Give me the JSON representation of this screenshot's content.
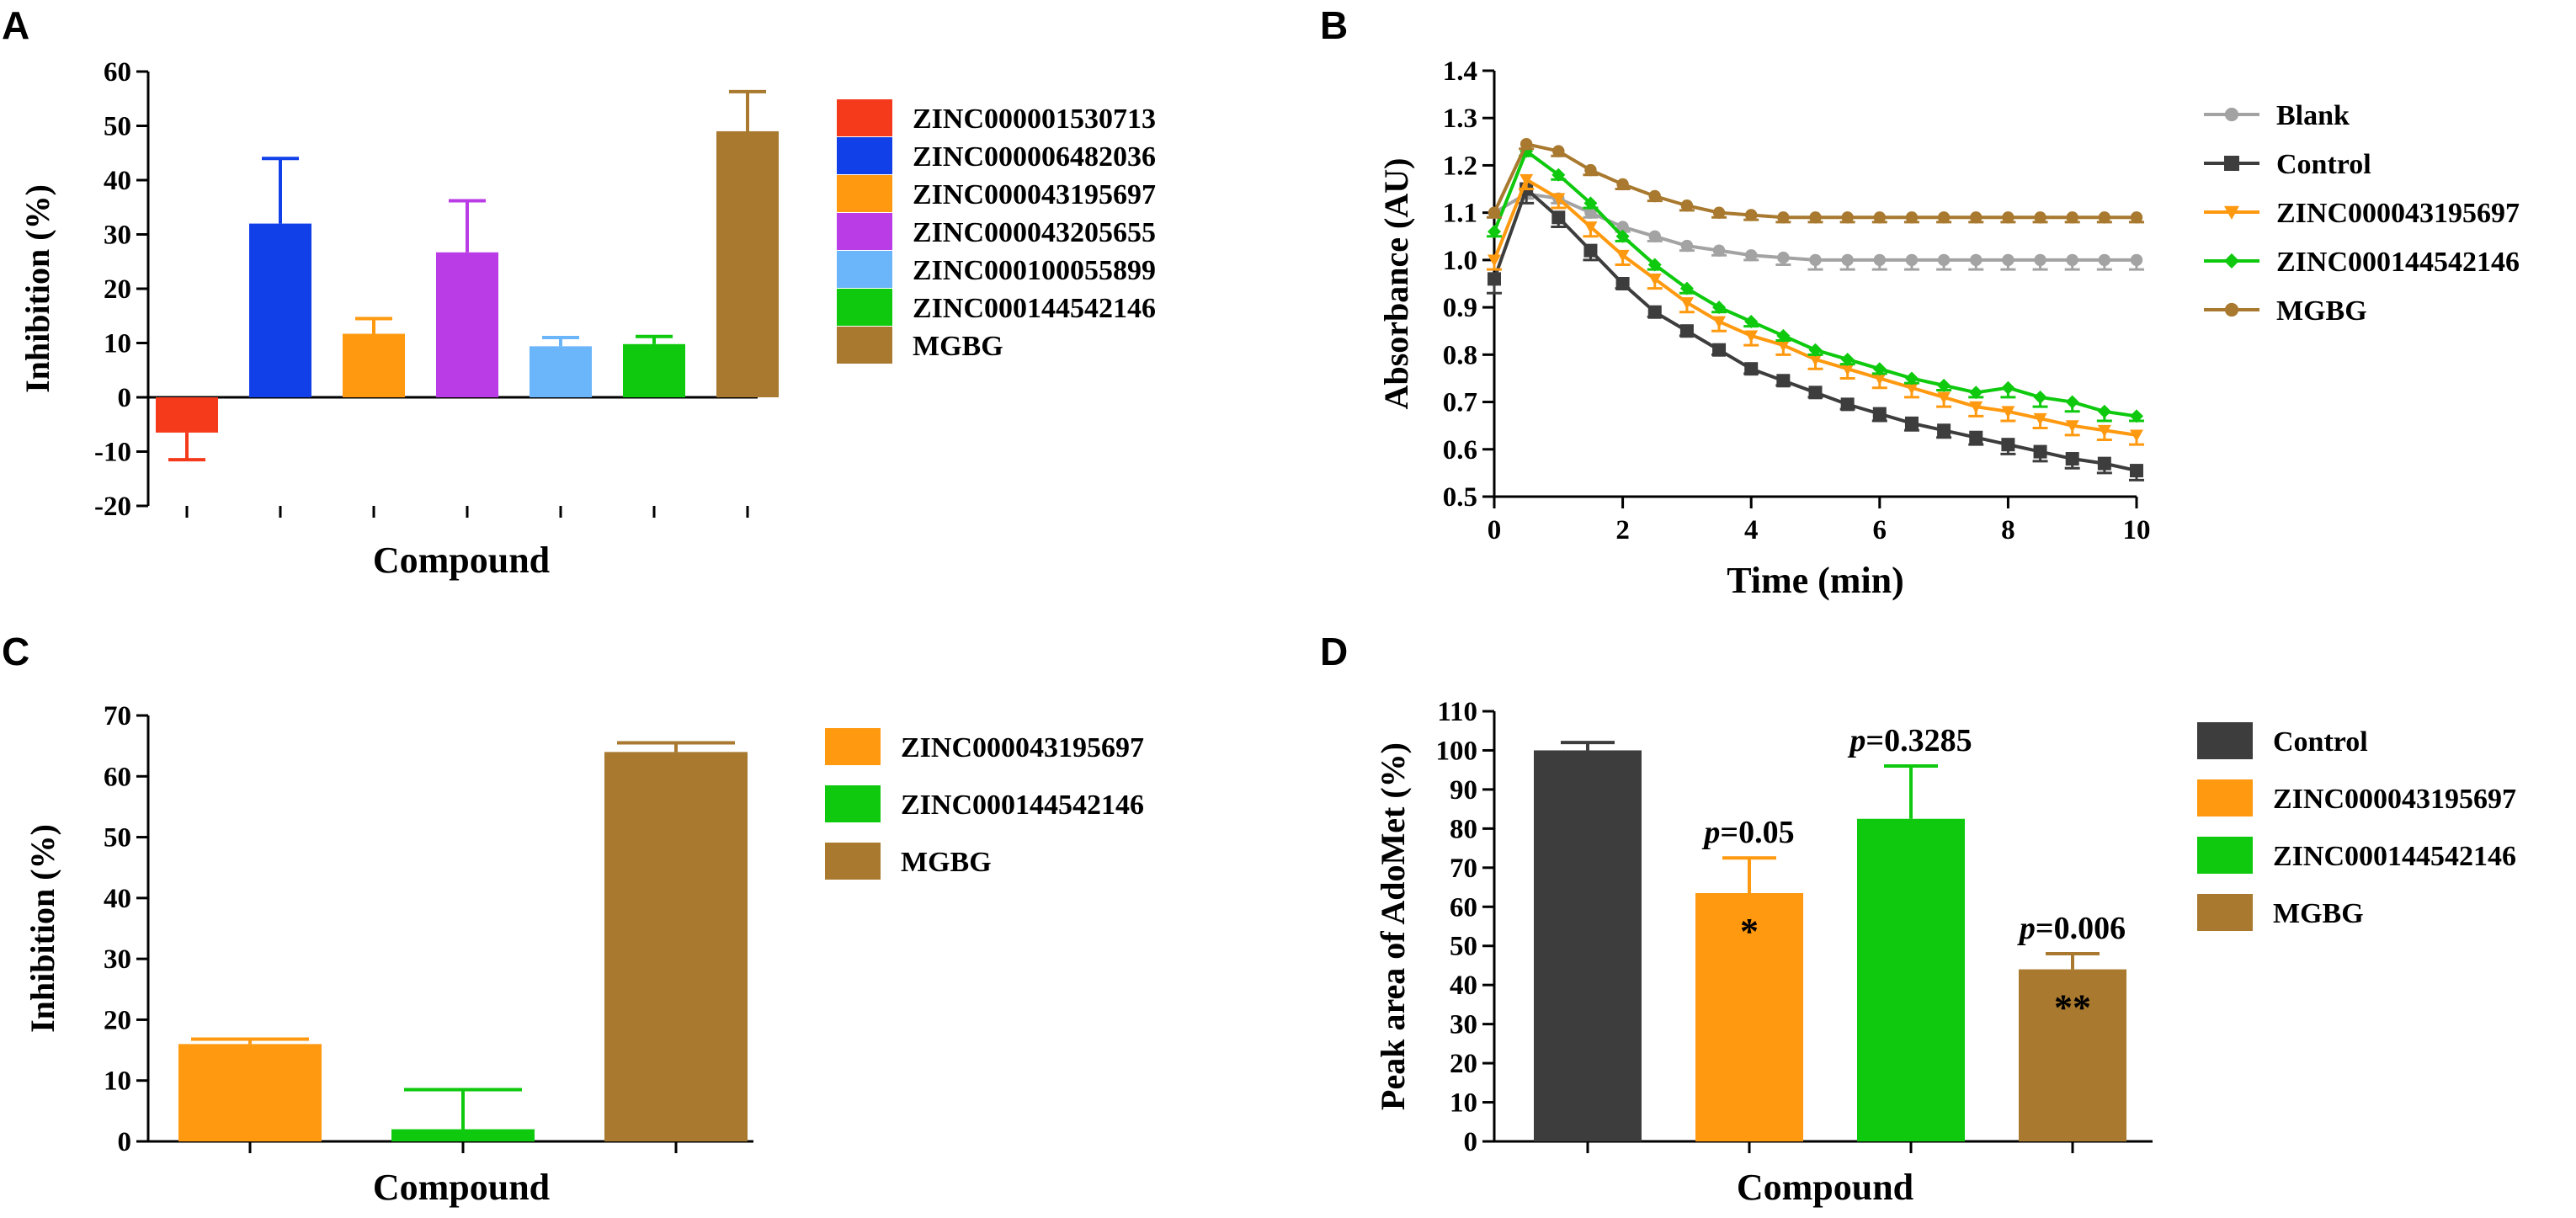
{
  "colors": {
    "ZINC000001530713": "#f53a1c",
    "ZINC000006482036": "#1240e8",
    "ZINC000043195697": "#ff9910",
    "ZINC000043205655": "#b93ce6",
    "ZINC000100055899": "#6bb6fa",
    "ZINC000144542146": "#0ec90e",
    "MGBG": "#a8792e",
    "Blank": "#a3a3a3",
    "Control": "#3d3d3d"
  },
  "chart_data": [
    {
      "panel": "A",
      "type": "bar",
      "title": "",
      "xlabel": "Compound",
      "ylabel": "Inhibition (%)",
      "ylim": [
        -20,
        60
      ],
      "yticks": [
        -20,
        -10,
        0,
        10,
        20,
        30,
        40,
        50,
        60
      ],
      "legend": "right",
      "categories": [
        "ZINC000001530713",
        "ZINC000006482036",
        "ZINC000043195697",
        "ZINC000043205655",
        "ZINC000100055899",
        "ZINC000144542146",
        "MGBG"
      ],
      "values": [
        -6.5,
        32,
        11.7,
        26.7,
        9.4,
        9.8,
        49
      ],
      "errors": [
        5,
        12,
        2.8,
        9.5,
        1.6,
        1.4,
        7.3
      ]
    },
    {
      "panel": "B",
      "type": "line",
      "title": "",
      "xlabel": "Time (min)",
      "ylabel": "Absorbance (AU)",
      "xlim": [
        0,
        10
      ],
      "ylim": [
        0.5,
        1.4
      ],
      "xticks": [
        0,
        2,
        4,
        6,
        8,
        10
      ],
      "yticks": [
        0.5,
        0.6,
        0.7,
        0.8,
        0.9,
        1.0,
        1.1,
        1.2,
        1.3,
        1.4
      ],
      "legend": "right",
      "x": [
        0,
        0.5,
        1,
        1.5,
        2,
        2.5,
        3,
        3.5,
        4,
        4.5,
        5,
        5.5,
        6,
        6.5,
        7,
        7.5,
        8,
        8.5,
        9,
        9.5,
        10
      ],
      "series": [
        {
          "name": "Blank",
          "marker": "circle",
          "values": [
            1.1,
            1.14,
            1.13,
            1.1,
            1.07,
            1.05,
            1.03,
            1.02,
            1.01,
            1.005,
            1.0,
            1.0,
            1.0,
            1.0,
            1.0,
            1.0,
            1.0,
            1.0,
            1.0,
            1.0,
            1.0
          ],
          "errors": [
            0.01,
            0.01,
            0.01,
            0.01,
            0.01,
            0.01,
            0.01,
            0.01,
            0.01,
            0.015,
            0.02,
            0.02,
            0.02,
            0.02,
            0.02,
            0.02,
            0.02,
            0.02,
            0.02,
            0.02,
            0.02
          ]
        },
        {
          "name": "Control",
          "marker": "square",
          "values": [
            0.96,
            1.15,
            1.09,
            1.02,
            0.95,
            0.89,
            0.85,
            0.81,
            0.77,
            0.745,
            0.72,
            0.695,
            0.675,
            0.655,
            0.64,
            0.625,
            0.61,
            0.595,
            0.58,
            0.57,
            0.555
          ],
          "errors": [
            0.03,
            0.03,
            0.02,
            0.02,
            0.01,
            0.01,
            0.01,
            0.01,
            0.01,
            0.01,
            0.01,
            0.01,
            0.015,
            0.015,
            0.015,
            0.015,
            0.02,
            0.02,
            0.02,
            0.02,
            0.02
          ]
        },
        {
          "name": "ZINC000043195697",
          "marker": "triangle-down",
          "values": [
            1.0,
            1.17,
            1.13,
            1.07,
            1.01,
            0.96,
            0.91,
            0.87,
            0.84,
            0.82,
            0.79,
            0.77,
            0.75,
            0.73,
            0.71,
            0.69,
            0.68,
            0.665,
            0.65,
            0.64,
            0.63
          ],
          "errors": [
            0.02,
            0.02,
            0.02,
            0.02,
            0.02,
            0.02,
            0.02,
            0.02,
            0.02,
            0.02,
            0.02,
            0.02,
            0.02,
            0.02,
            0.02,
            0.02,
            0.02,
            0.02,
            0.02,
            0.02,
            0.02
          ]
        },
        {
          "name": "ZINC000144542146",
          "marker": "diamond",
          "values": [
            1.06,
            1.23,
            1.18,
            1.12,
            1.05,
            0.99,
            0.94,
            0.9,
            0.87,
            0.84,
            0.81,
            0.79,
            0.77,
            0.75,
            0.735,
            0.72,
            0.73,
            0.71,
            0.7,
            0.68,
            0.67
          ],
          "errors": [
            0.01,
            0.01,
            0.01,
            0.01,
            0.01,
            0.01,
            0.01,
            0.01,
            0.01,
            0.01,
            0.01,
            0.01,
            0.01,
            0.01,
            0.01,
            0.01,
            0.02,
            0.02,
            0.02,
            0.02,
            0.01
          ]
        },
        {
          "name": "MGBG",
          "marker": "circle",
          "values": [
            1.1,
            1.245,
            1.23,
            1.19,
            1.16,
            1.135,
            1.115,
            1.1,
            1.095,
            1.09,
            1.09,
            1.09,
            1.09,
            1.09,
            1.09,
            1.09,
            1.09,
            1.09,
            1.09,
            1.09,
            1.09
          ],
          "errors": [
            0.01,
            0.01,
            0.01,
            0.01,
            0.01,
            0.01,
            0.01,
            0.01,
            0.01,
            0.01,
            0.01,
            0.01,
            0.01,
            0.01,
            0.01,
            0.01,
            0.01,
            0.01,
            0.01,
            0.01,
            0.01
          ]
        }
      ]
    },
    {
      "panel": "C",
      "type": "bar",
      "title": "",
      "xlabel": "Compound",
      "ylabel": "Inhibition (%)",
      "ylim": [
        0,
        70
      ],
      "yticks": [
        0,
        10,
        20,
        30,
        40,
        50,
        60,
        70
      ],
      "legend": "right",
      "categories": [
        "ZINC000043195697",
        "ZINC000144542146",
        "MGBG"
      ],
      "values": [
        16,
        2,
        64
      ],
      "errors": [
        0.8,
        6.5,
        1.5
      ]
    },
    {
      "panel": "D",
      "type": "bar",
      "title": "",
      "xlabel": "Compound",
      "ylabel": "Peak area of AdoMet (%)",
      "ylim": [
        0,
        110
      ],
      "yticks": [
        0,
        10,
        20,
        30,
        40,
        50,
        60,
        70,
        80,
        90,
        100,
        110
      ],
      "legend": "right",
      "categories": [
        "Control",
        "ZINC000043195697",
        "ZINC000144542146",
        "MGBG"
      ],
      "values": [
        100,
        63.5,
        82.5,
        44
      ],
      "errors": [
        2,
        9,
        13.5,
        4
      ],
      "p_values": [
        "",
        "=0.05",
        "=0.3285",
        "=0.006"
      ],
      "p_label": "p",
      "stars": [
        "",
        "*",
        "",
        "**"
      ]
    }
  ]
}
